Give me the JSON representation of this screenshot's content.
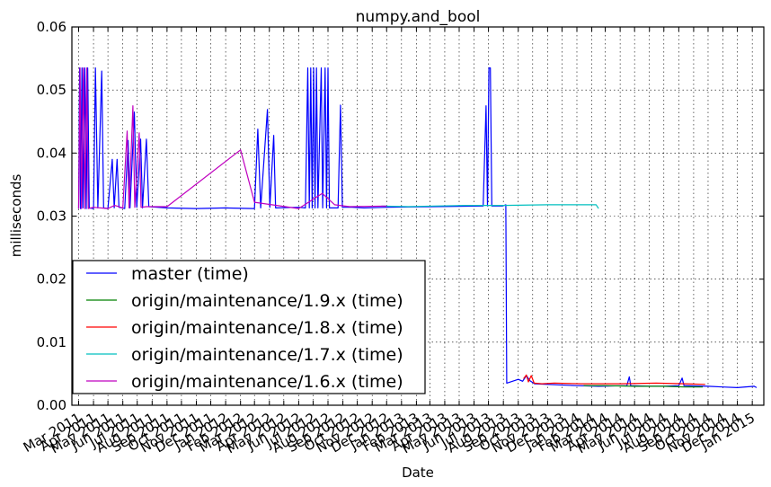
{
  "chart_data": {
    "type": "line",
    "title": "numpy.and_bool",
    "xlabel": "Date",
    "ylabel": "milliseconds",
    "ylim": [
      0,
      0.06
    ],
    "xlim": [
      "2011-02-15",
      "2015-01-25"
    ],
    "y_ticks": [
      "0.00",
      "0.01",
      "0.02",
      "0.03",
      "0.04",
      "0.05",
      "0.06"
    ],
    "x_ticks": [
      {
        "date": "2011-03-01",
        "label": "Mar 2011"
      },
      {
        "date": "2011-04-01",
        "label": "Apr 2011"
      },
      {
        "date": "2011-05-01",
        "label": "May 2011"
      },
      {
        "date": "2011-06-01",
        "label": "Jun 2011"
      },
      {
        "date": "2011-07-01",
        "label": "Jul 2011"
      },
      {
        "date": "2011-08-01",
        "label": "Aug 2011"
      },
      {
        "date": "2011-09-01",
        "label": "Sep 2011"
      },
      {
        "date": "2011-10-01",
        "label": "Oct 2011"
      },
      {
        "date": "2011-11-01",
        "label": "Nov 2011"
      },
      {
        "date": "2011-12-01",
        "label": "Dec 2011"
      },
      {
        "date": "2012-01-01",
        "label": "Jan 2012"
      },
      {
        "date": "2012-02-01",
        "label": "Feb 2012"
      },
      {
        "date": "2012-03-01",
        "label": "Mar 2012"
      },
      {
        "date": "2012-04-01",
        "label": "Apr 2012"
      },
      {
        "date": "2012-05-01",
        "label": "May 2012"
      },
      {
        "date": "2012-06-01",
        "label": "Jun 2012"
      },
      {
        "date": "2012-07-01",
        "label": "Jul 2012"
      },
      {
        "date": "2012-08-01",
        "label": "Aug 2012"
      },
      {
        "date": "2012-09-01",
        "label": "Sep 2012"
      },
      {
        "date": "2012-10-01",
        "label": "Oct 2012"
      },
      {
        "date": "2012-11-01",
        "label": "Nov 2012"
      },
      {
        "date": "2012-12-01",
        "label": "Dec 2012"
      },
      {
        "date": "2013-01-01",
        "label": "Jan 2013"
      },
      {
        "date": "2013-02-01",
        "label": "Feb 2013"
      },
      {
        "date": "2013-03-01",
        "label": "Mar 2013"
      },
      {
        "date": "2013-04-01",
        "label": "Apr 2013"
      },
      {
        "date": "2013-05-01",
        "label": "May 2013"
      },
      {
        "date": "2013-06-01",
        "label": "Jun 2013"
      },
      {
        "date": "2013-07-01",
        "label": "Jul 2013"
      },
      {
        "date": "2013-08-01",
        "label": "Aug 2013"
      },
      {
        "date": "2013-09-01",
        "label": "Sep 2013"
      },
      {
        "date": "2013-10-01",
        "label": "Oct 2013"
      },
      {
        "date": "2013-11-01",
        "label": "Nov 2013"
      },
      {
        "date": "2013-12-01",
        "label": "Dec 2013"
      },
      {
        "date": "2014-01-01",
        "label": "Jan 2014"
      },
      {
        "date": "2014-02-01",
        "label": "Feb 2014"
      },
      {
        "date": "2014-03-01",
        "label": "Mar 2014"
      },
      {
        "date": "2014-04-01",
        "label": "Apr 2014"
      },
      {
        "date": "2014-05-01",
        "label": "May 2014"
      },
      {
        "date": "2014-06-01",
        "label": "Jun 2014"
      },
      {
        "date": "2014-07-01",
        "label": "Jul 2014"
      },
      {
        "date": "2014-08-01",
        "label": "Aug 2014"
      },
      {
        "date": "2014-09-01",
        "label": "Sep 2014"
      },
      {
        "date": "2014-10-01",
        "label": "Oct 2014"
      },
      {
        "date": "2014-11-01",
        "label": "Nov 2014"
      },
      {
        "date": "2014-12-01",
        "label": "Dec 2014"
      },
      {
        "date": "2015-01-01",
        "label": "Jan 2015"
      }
    ],
    "grid": true,
    "legend_position": "lower-left",
    "series": [
      {
        "name": "master (time)",
        "color": "#0000ff",
        "points": [
          [
            "2011-03-01",
            0.0312
          ],
          [
            "2011-03-03",
            0.0535
          ],
          [
            "2011-03-05",
            0.0312
          ],
          [
            "2011-03-08",
            0.0535
          ],
          [
            "2011-03-10",
            0.0313
          ],
          [
            "2011-03-14",
            0.0535
          ],
          [
            "2011-03-17",
            0.0312
          ],
          [
            "2011-03-20",
            0.0535
          ],
          [
            "2011-03-23",
            0.0313
          ],
          [
            "2011-04-01",
            0.0312
          ],
          [
            "2011-04-05",
            0.0535
          ],
          [
            "2011-04-10",
            0.0313
          ],
          [
            "2011-04-18",
            0.053
          ],
          [
            "2011-04-22",
            0.0313
          ],
          [
            "2011-05-01",
            0.0312
          ],
          [
            "2011-05-10",
            0.039
          ],
          [
            "2011-05-14",
            0.0313
          ],
          [
            "2011-05-20",
            0.039
          ],
          [
            "2011-05-24",
            0.0314
          ],
          [
            "2011-06-05",
            0.0312
          ],
          [
            "2011-06-12",
            0.042
          ],
          [
            "2011-06-16",
            0.0313
          ],
          [
            "2011-06-25",
            0.0465
          ],
          [
            "2011-06-30",
            0.0314
          ],
          [
            "2011-07-08",
            0.0422
          ],
          [
            "2011-07-12",
            0.0313
          ],
          [
            "2011-07-20",
            0.0422
          ],
          [
            "2011-07-25",
            0.0315
          ],
          [
            "2011-09-01",
            0.0313
          ],
          [
            "2011-11-01",
            0.0312
          ],
          [
            "2012-01-01",
            0.0313
          ],
          [
            "2012-03-01",
            0.0312
          ],
          [
            "2012-03-08",
            0.0438
          ],
          [
            "2012-03-14",
            0.0313
          ],
          [
            "2012-03-28",
            0.0469
          ],
          [
            "2012-04-02",
            0.0314
          ],
          [
            "2012-04-10",
            0.0428
          ],
          [
            "2012-04-14",
            0.0313
          ],
          [
            "2012-06-01",
            0.0314
          ],
          [
            "2012-06-15",
            0.0313
          ],
          [
            "2012-06-20",
            0.0535
          ],
          [
            "2012-06-23",
            0.0313
          ],
          [
            "2012-06-26",
            0.0535
          ],
          [
            "2012-06-29",
            0.0313
          ],
          [
            "2012-07-02",
            0.0535
          ],
          [
            "2012-07-05",
            0.0313
          ],
          [
            "2012-07-08",
            0.0535
          ],
          [
            "2012-07-11",
            0.0313
          ],
          [
            "2012-07-18",
            0.0535
          ],
          [
            "2012-07-21",
            0.0313
          ],
          [
            "2012-07-26",
            0.0535
          ],
          [
            "2012-07-29",
            0.0313
          ],
          [
            "2012-08-01",
            0.0535
          ],
          [
            "2012-08-04",
            0.0313
          ],
          [
            "2012-08-22",
            0.0313
          ],
          [
            "2012-08-27",
            0.0476
          ],
          [
            "2012-08-31",
            0.0314
          ],
          [
            "2012-09-20",
            0.0314
          ],
          [
            "2012-10-15",
            0.0313
          ],
          [
            "2012-12-01",
            0.0314
          ],
          [
            "2013-03-01",
            0.0315
          ],
          [
            "2013-06-20",
            0.0316
          ],
          [
            "2013-06-26",
            0.0475
          ],
          [
            "2013-06-29",
            0.0316
          ],
          [
            "2013-07-02",
            0.0535
          ],
          [
            "2013-07-05",
            0.0535
          ],
          [
            "2013-07-08",
            0.0316
          ],
          [
            "2013-07-30",
            0.0316
          ],
          [
            "2013-08-06",
            0.0318
          ],
          [
            "2013-08-08",
            0.0035
          ],
          [
            "2013-08-20",
            0.0038
          ],
          [
            "2013-09-01",
            0.0041
          ],
          [
            "2013-09-10",
            0.0038
          ],
          [
            "2013-09-18",
            0.0047
          ],
          [
            "2013-09-25",
            0.0039
          ],
          [
            "2013-10-05",
            0.0034
          ],
          [
            "2013-11-01",
            0.0033
          ],
          [
            "2014-01-01",
            0.0031
          ],
          [
            "2014-02-15",
            0.003
          ],
          [
            "2014-04-15",
            0.0031
          ],
          [
            "2014-04-20",
            0.0045
          ],
          [
            "2014-04-23",
            0.0031
          ],
          [
            "2014-06-01",
            0.003
          ],
          [
            "2014-07-01",
            0.003
          ],
          [
            "2014-08-01",
            0.0031
          ],
          [
            "2014-08-08",
            0.0043
          ],
          [
            "2014-08-12",
            0.0031
          ],
          [
            "2014-10-01",
            0.003
          ],
          [
            "2014-11-01",
            0.0029
          ],
          [
            "2014-12-01",
            0.0028
          ],
          [
            "2015-01-05",
            0.003
          ],
          [
            "2015-01-10",
            0.0028
          ]
        ]
      },
      {
        "name": "origin/maintenance/1.9.x (time)",
        "color": "#008000",
        "points": [
          [
            "2014-01-15",
            0.0031
          ],
          [
            "2014-03-01",
            0.0031
          ],
          [
            "2014-05-01",
            0.003
          ],
          [
            "2014-07-01",
            0.003
          ],
          [
            "2014-08-15",
            0.0029
          ],
          [
            "2014-09-20",
            0.0029
          ]
        ]
      },
      {
        "name": "origin/maintenance/1.8.x (time)",
        "color": "#ff0000",
        "points": [
          [
            "2013-09-12",
            0.0042
          ],
          [
            "2013-09-18",
            0.0048
          ],
          [
            "2013-09-22",
            0.0037
          ],
          [
            "2013-09-28",
            0.0047
          ],
          [
            "2013-10-04",
            0.0035
          ],
          [
            "2013-10-20",
            0.0034
          ],
          [
            "2013-11-15",
            0.0035
          ],
          [
            "2014-01-10",
            0.0034
          ],
          [
            "2014-04-01",
            0.0034
          ],
          [
            "2014-06-15",
            0.0035
          ],
          [
            "2014-08-15",
            0.0034
          ],
          [
            "2014-09-25",
            0.0033
          ]
        ]
      },
      {
        "name": "origin/maintenance/1.7.x (time)",
        "color": "#00bfbf",
        "points": [
          [
            "2012-11-20",
            0.0316
          ],
          [
            "2013-01-15",
            0.0315
          ],
          [
            "2013-03-10",
            0.0316
          ],
          [
            "2013-05-15",
            0.0317
          ],
          [
            "2013-08-01",
            0.0317
          ],
          [
            "2013-11-01",
            0.0318
          ],
          [
            "2014-01-15",
            0.0318
          ],
          [
            "2014-02-10",
            0.0318
          ],
          [
            "2014-02-15",
            0.0312
          ]
        ]
      },
      {
        "name": "origin/maintenance/1.6.x (time)",
        "color": "#bf00bf",
        "points": [
          [
            "2011-03-01",
            0.0312
          ],
          [
            "2011-03-04",
            0.0535
          ],
          [
            "2011-03-07",
            0.0312
          ],
          [
            "2011-03-11",
            0.0535
          ],
          [
            "2011-03-14",
            0.0312
          ],
          [
            "2011-03-18",
            0.0535
          ],
          [
            "2011-03-21",
            0.0312
          ],
          [
            "2011-04-01",
            0.0314
          ],
          [
            "2011-05-01",
            0.0312
          ],
          [
            "2011-05-15",
            0.0317
          ],
          [
            "2011-06-01",
            0.0313
          ],
          [
            "2011-06-10",
            0.0435
          ],
          [
            "2011-06-14",
            0.0313
          ],
          [
            "2011-06-22",
            0.0475
          ],
          [
            "2011-06-26",
            0.0314
          ],
          [
            "2011-07-05",
            0.0432
          ],
          [
            "2011-07-09",
            0.0314
          ],
          [
            "2011-07-20",
            0.0315
          ],
          [
            "2011-09-01",
            0.0315
          ],
          [
            "2012-02-01",
            0.0405
          ],
          [
            "2012-03-01",
            0.0322
          ],
          [
            "2012-06-01",
            0.0312
          ],
          [
            "2012-07-20",
            0.0336
          ],
          [
            "2012-08-15",
            0.0318
          ],
          [
            "2012-09-15",
            0.0315
          ],
          [
            "2012-12-01",
            0.0316
          ]
        ]
      }
    ]
  }
}
